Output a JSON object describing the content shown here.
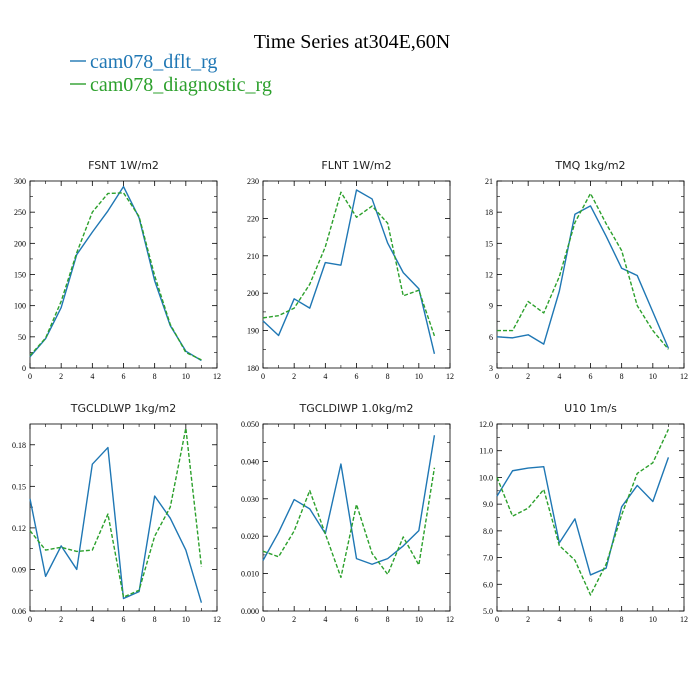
{
  "figure": {
    "title": "Time Series at304E,60N"
  },
  "legend": [
    {
      "name": "cam078_dflt_rg",
      "color": "#1f77b4",
      "dash": "solid"
    },
    {
      "name": "cam078_diagnostic_rg",
      "color": "#2ca02c",
      "dash": "dashed"
    }
  ],
  "chart_data": [
    {
      "type": "line",
      "title": "FSNT   1W/m2",
      "x": [
        0,
        1,
        2,
        3,
        4,
        5,
        6,
        7,
        8,
        9,
        10,
        11
      ],
      "xlim": [
        0,
        12
      ],
      "xticks": [
        0,
        2,
        4,
        6,
        8,
        10,
        12
      ],
      "ylim": [
        0,
        300
      ],
      "yticks": [
        0,
        50,
        100,
        150,
        200,
        250,
        300
      ],
      "ytick_labels": [
        "0",
        "50",
        "100",
        "150",
        "200",
        "250",
        "300"
      ],
      "series": [
        {
          "name": "cam078_dflt_rg",
          "values": [
            18,
            47,
            97,
            182,
            218,
            252,
            291,
            241,
            140,
            68,
            27,
            12
          ]
        },
        {
          "name": "cam078_diagnostic_rg",
          "values": [
            20,
            48,
            107,
            185,
            250,
            280,
            281,
            243,
            148,
            70,
            25,
            13
          ]
        }
      ]
    },
    {
      "type": "line",
      "title": "FLNT   1W/m2",
      "x": [
        0,
        1,
        2,
        3,
        4,
        5,
        6,
        7,
        8,
        9,
        10,
        11
      ],
      "xlim": [
        0,
        12
      ],
      "xticks": [
        0,
        2,
        4,
        6,
        8,
        10,
        12
      ],
      "ylim": [
        180,
        230
      ],
      "yticks": [
        180,
        190,
        200,
        210,
        220,
        230
      ],
      "ytick_labels": [
        "180",
        "190",
        "200",
        "210",
        "220",
        "230"
      ],
      "series": [
        {
          "name": "cam078_dflt_rg",
          "values": [
            192.6,
            188.7,
            198.5,
            196.0,
            208.2,
            207.5,
            227.6,
            225.2,
            213.4,
            205.5,
            201.2,
            183.8
          ]
        },
        {
          "name": "cam078_diagnostic_rg",
          "values": [
            193.4,
            194.0,
            196.0,
            202.4,
            212.4,
            227.0,
            220.3,
            223.3,
            218.7,
            199.3,
            200.8,
            188.6
          ]
        }
      ]
    },
    {
      "type": "line",
      "title": "TMQ   1kg/m2",
      "x": [
        0,
        1,
        2,
        3,
        4,
        5,
        6,
        7,
        8,
        9,
        10,
        11
      ],
      "xlim": [
        0,
        12
      ],
      "xticks": [
        0,
        2,
        4,
        6,
        8,
        10,
        12
      ],
      "ylim": [
        3,
        21
      ],
      "yticks": [
        3,
        6,
        9,
        12,
        15,
        18,
        21
      ],
      "ytick_labels": [
        "3",
        "6",
        "9",
        "12",
        "15",
        "18",
        "21"
      ],
      "series": [
        {
          "name": "cam078_dflt_rg",
          "values": [
            6.0,
            5.9,
            6.2,
            5.3,
            10.4,
            17.8,
            18.6,
            15.7,
            12.6,
            11.9,
            8.4,
            4.9
          ]
        },
        {
          "name": "cam078_diagnostic_rg",
          "values": [
            6.6,
            6.6,
            9.4,
            8.3,
            11.8,
            17.0,
            19.8,
            16.9,
            14.3,
            9.0,
            6.6,
            4.8
          ]
        }
      ]
    },
    {
      "type": "line",
      "title": "TGCLDLWP   1kg/m2",
      "x": [
        0,
        1,
        2,
        3,
        4,
        5,
        6,
        7,
        8,
        9,
        10,
        11
      ],
      "xlim": [
        0,
        12
      ],
      "xticks": [
        0,
        2,
        4,
        6,
        8,
        10,
        12
      ],
      "ylim": [
        0.06,
        0.195
      ],
      "yticks": [
        0.06,
        0.09,
        0.12,
        0.15,
        0.18
      ],
      "ytick_labels": [
        "0.06",
        "0.09",
        "0.12",
        "0.15",
        "0.18"
      ],
      "series": [
        {
          "name": "cam078_dflt_rg",
          "values": [
            0.141,
            0.085,
            0.107,
            0.09,
            0.166,
            0.178,
            0.069,
            0.074,
            0.143,
            0.127,
            0.104,
            0.066
          ]
        },
        {
          "name": "cam078_diagnostic_rg",
          "values": [
            0.118,
            0.104,
            0.106,
            0.103,
            0.104,
            0.13,
            0.07,
            0.075,
            0.114,
            0.135,
            0.192,
            0.092
          ]
        }
      ]
    },
    {
      "type": "line",
      "title": "TGCLDIWP   1.0kg/m2",
      "x": [
        0,
        1,
        2,
        3,
        4,
        5,
        6,
        7,
        8,
        9,
        10,
        11
      ],
      "xlim": [
        0,
        12
      ],
      "xticks": [
        0,
        2,
        4,
        6,
        8,
        10,
        12
      ],
      "ylim": [
        0,
        0.05
      ],
      "yticks": [
        0,
        0.01,
        0.02,
        0.03,
        0.04,
        0.05
      ],
      "ytick_labels": [
        "0.000",
        "0.010",
        "0.020",
        "0.030",
        "0.040",
        "0.050"
      ],
      "series": [
        {
          "name": "cam078_dflt_rg",
          "values": [
            0.0135,
            0.021,
            0.0298,
            0.0273,
            0.0207,
            0.0393,
            0.014,
            0.0125,
            0.014,
            0.0174,
            0.0215,
            0.047
          ]
        },
        {
          "name": "cam078_diagnostic_rg",
          "values": [
            0.016,
            0.0145,
            0.0214,
            0.0322,
            0.0206,
            0.009,
            0.0285,
            0.0154,
            0.0098,
            0.0198,
            0.0123,
            0.0383
          ]
        }
      ]
    },
    {
      "type": "line",
      "title": "U10   1m/s",
      "x": [
        0,
        1,
        2,
        3,
        4,
        5,
        6,
        7,
        8,
        9,
        10,
        11
      ],
      "xlim": [
        0,
        12
      ],
      "xticks": [
        0,
        2,
        4,
        6,
        8,
        10,
        12
      ],
      "ylim": [
        5,
        12
      ],
      "yticks": [
        5,
        6,
        7,
        8,
        9,
        10,
        11,
        12
      ],
      "ytick_labels": [
        "5.0",
        "6.0",
        "7.0",
        "8.0",
        "9.0",
        "10.0",
        "11.0",
        "12.0"
      ],
      "series": [
        {
          "name": "cam078_dflt_rg",
          "values": [
            9.3,
            10.25,
            10.35,
            10.4,
            7.55,
            8.45,
            6.35,
            6.6,
            8.9,
            9.7,
            9.1,
            10.75
          ]
        },
        {
          "name": "cam078_diagnostic_rg",
          "values": [
            10.0,
            8.55,
            8.85,
            9.55,
            7.45,
            6.9,
            5.6,
            6.75,
            8.6,
            10.15,
            10.55,
            11.8
          ]
        }
      ]
    }
  ]
}
